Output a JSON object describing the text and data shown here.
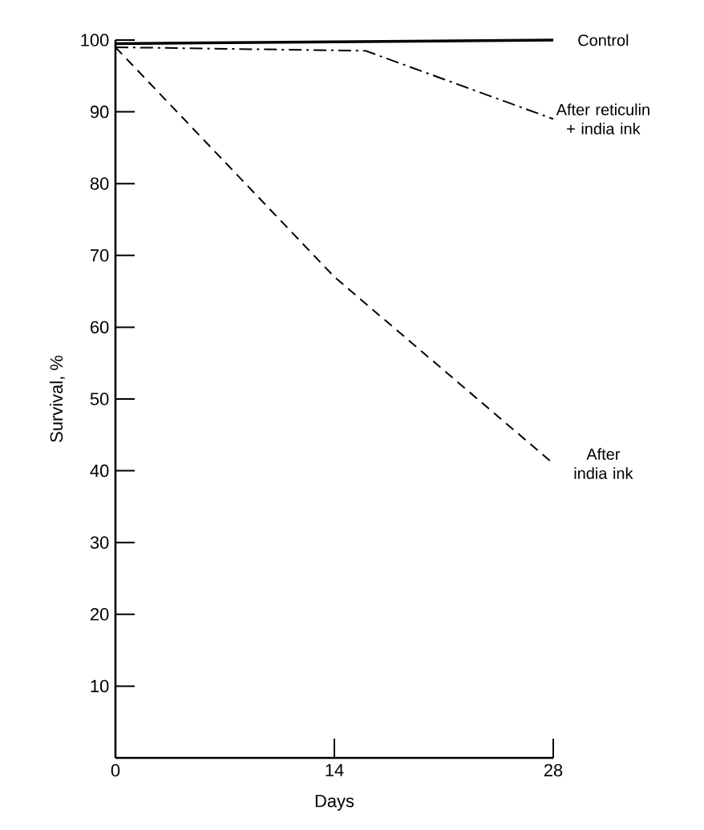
{
  "chart_data": {
    "type": "line",
    "xlabel": "Days",
    "ylabel": "Survival, %",
    "xlim": [
      0,
      28
    ],
    "xticks": [
      0,
      14,
      28
    ],
    "ylim": [
      0,
      100
    ],
    "yticks": [
      10,
      20,
      30,
      40,
      50,
      60,
      70,
      80,
      90,
      100
    ],
    "tick_labels": true,
    "grid": false,
    "legend": false,
    "series": [
      {
        "name": "Control",
        "color": "#000000",
        "line_style": "solid",
        "x": [
          0,
          28
        ],
        "values": [
          99.5,
          100
        ]
      },
      {
        "name": "After reticulin + india ink",
        "color": "#000000",
        "line_style": "dashdot",
        "x": [
          0,
          16,
          28
        ],
        "values": [
          99,
          98.5,
          89
        ]
      },
      {
        "name": "After india ink",
        "color": "#000000",
        "line_style": "dashed",
        "x": [
          0,
          14,
          28
        ],
        "values": [
          99,
          67,
          41
        ]
      }
    ]
  }
}
